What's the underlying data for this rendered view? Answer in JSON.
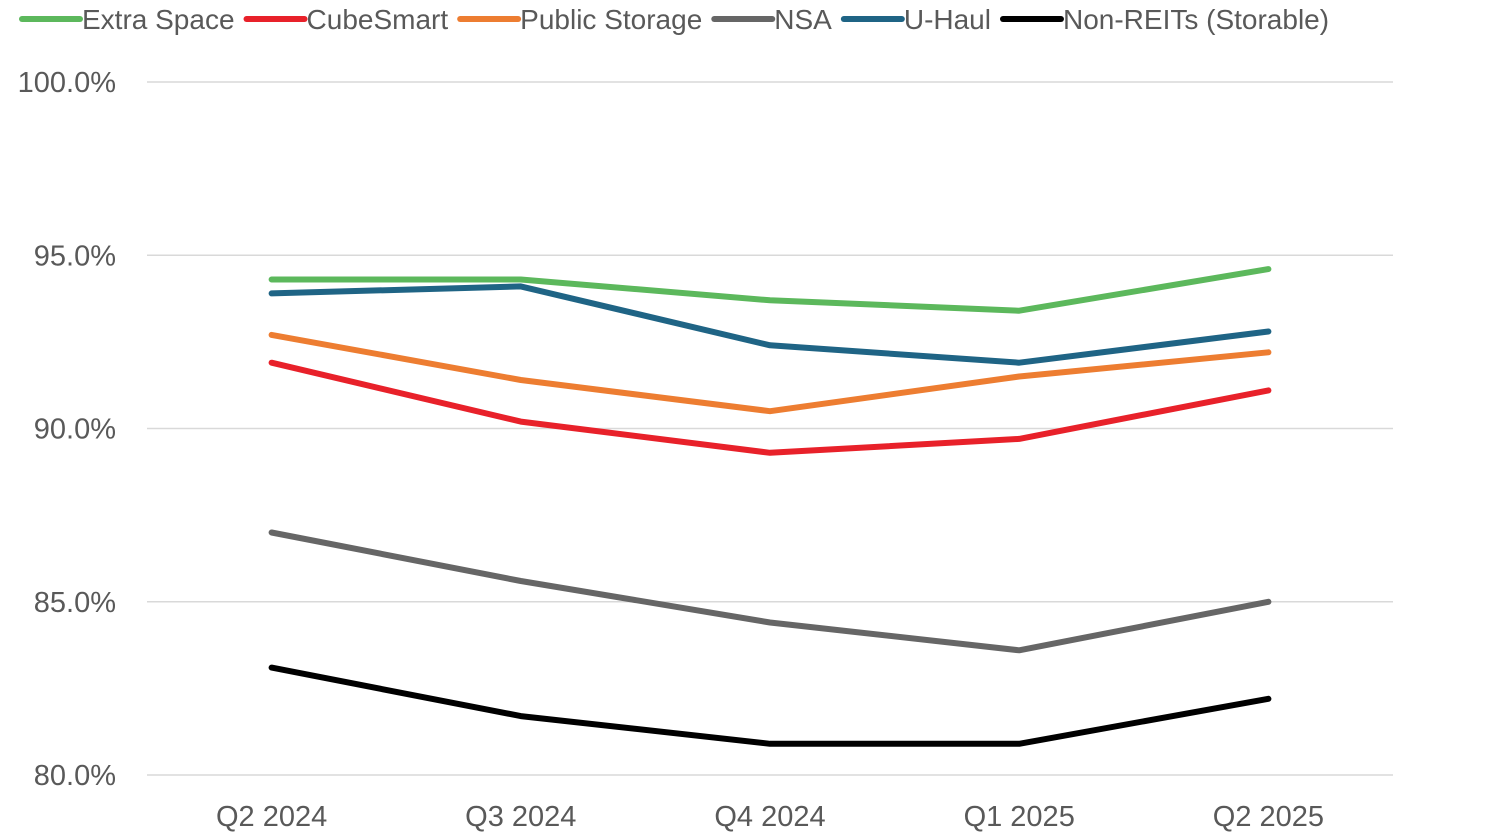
{
  "chart_data": {
    "type": "line",
    "title": "",
    "xlabel": "",
    "ylabel": "",
    "categories": [
      "Q2 2024",
      "Q3 2024",
      "Q4 2024",
      "Q1 2025",
      "Q2 2025"
    ],
    "ylim": [
      80,
      100
    ],
    "yticks": [
      80,
      85,
      90,
      95,
      100
    ],
    "ytick_labels": [
      "80.0%",
      "85.0%",
      "90.0%",
      "95.0%",
      "100.0%"
    ],
    "grid": true,
    "legend_position": "top",
    "series": [
      {
        "name": "Extra Space",
        "color": "#5cb85c",
        "values": [
          94.3,
          94.3,
          93.7,
          93.4,
          94.6
        ]
      },
      {
        "name": "CubeSmart",
        "color": "#e8212a",
        "values": [
          91.9,
          90.2,
          89.3,
          89.7,
          91.1
        ]
      },
      {
        "name": "Public Storage",
        "color": "#ed7d31",
        "values": [
          92.7,
          91.4,
          90.5,
          91.5,
          92.2
        ]
      },
      {
        "name": "NSA",
        "color": "#666666",
        "values": [
          87.0,
          85.6,
          84.4,
          83.6,
          85.0
        ]
      },
      {
        "name": "U-Haul",
        "color": "#1f6485",
        "values": [
          93.9,
          94.1,
          92.4,
          91.9,
          92.8
        ]
      },
      {
        "name": "Non-REITs (Storable)",
        "color": "#000000",
        "values": [
          83.1,
          81.7,
          80.9,
          80.9,
          82.2
        ]
      }
    ]
  }
}
